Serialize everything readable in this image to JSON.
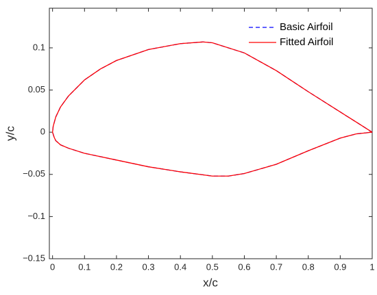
{
  "chart_data": {
    "type": "line",
    "xlabel": "x/c",
    "ylabel": "y/c",
    "x": [
      1,
      0.95,
      0.9,
      0.8,
      0.7,
      0.6,
      0.5,
      0.47,
      0.4,
      0.3,
      0.2,
      0.15,
      0.1,
      0.05,
      0.025,
      0.01,
      0.002,
      0,
      0.005,
      0.01,
      0.025,
      0.05,
      0.1,
      0.2,
      0.3,
      0.4,
      0.5,
      0.55,
      0.6,
      0.7,
      0.8,
      0.9,
      0.95,
      1
    ],
    "series": [
      {
        "name": "Basic Airfoil",
        "color": "#0000ff",
        "dashed": true,
        "values": [
          0,
          0.012,
          0.024,
          0.048,
          0.073,
          0.094,
          0.106,
          0.107,
          0.105,
          0.098,
          0.085,
          0.075,
          0.062,
          0.043,
          0.03,
          0.018,
          0.007,
          0,
          -0.006,
          -0.01,
          -0.015,
          -0.019,
          -0.025,
          -0.033,
          -0.041,
          -0.047,
          -0.052,
          -0.052,
          -0.049,
          -0.038,
          -0.022,
          -0.007,
          -0.002,
          0
        ]
      },
      {
        "name": "Fitted Airfoil",
        "color": "#ff0000",
        "dashed": false,
        "values": [
          0,
          0.012,
          0.024,
          0.048,
          0.073,
          0.094,
          0.106,
          0.107,
          0.105,
          0.098,
          0.085,
          0.075,
          0.062,
          0.043,
          0.03,
          0.018,
          0.007,
          0,
          -0.006,
          -0.01,
          -0.015,
          -0.019,
          -0.025,
          -0.033,
          -0.041,
          -0.047,
          -0.052,
          -0.052,
          -0.049,
          -0.038,
          -0.022,
          -0.007,
          -0.002,
          0
        ]
      }
    ],
    "xlim": [
      -0.01,
      1
    ],
    "ylim": [
      -0.15,
      0.147
    ],
    "xticks": [
      0,
      0.1,
      0.2,
      0.3,
      0.4,
      0.5,
      0.6,
      0.7,
      0.8,
      0.9,
      1
    ],
    "yticks": [
      {
        "value": -0.15,
        "label": "−0.15"
      },
      {
        "value": -0.1,
        "label": "−0.1"
      },
      {
        "value": -0.05,
        "label": "−0.05"
      },
      0,
      0.05,
      0.1
    ],
    "legend": "upper right",
    "grid": false
  }
}
